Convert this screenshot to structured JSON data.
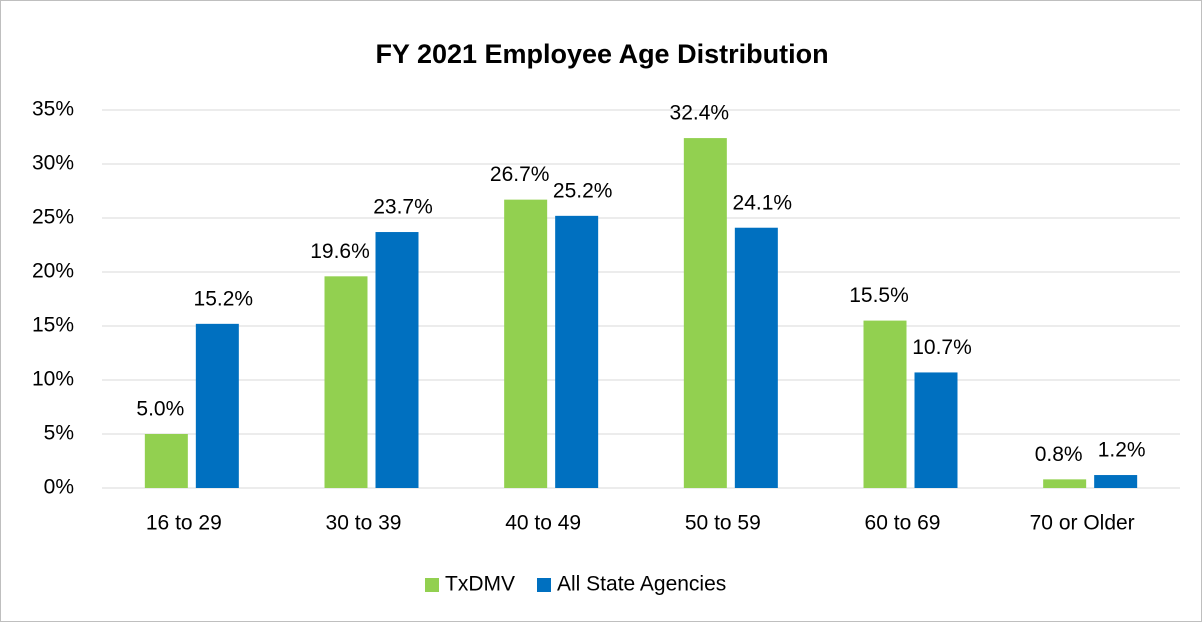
{
  "chart_data": {
    "type": "bar",
    "title": "FY 2021 Employee Age Distribution",
    "categories": [
      "16 to 29",
      "30 to 39",
      "40 to 49",
      "50 to 59",
      "60 to 69",
      "70 or Older"
    ],
    "series": [
      {
        "name": "TxDMV",
        "color": "#92d050",
        "values": [
          5.0,
          19.6,
          26.7,
          32.4,
          15.5,
          0.8
        ],
        "value_labels": [
          "5.0%",
          "19.6%",
          "26.7%",
          "32.4%",
          "15.5%",
          "0.8%"
        ]
      },
      {
        "name": "All State Agencies",
        "color": "#0070c0",
        "values": [
          15.2,
          23.7,
          25.2,
          24.1,
          10.7,
          1.2
        ],
        "value_labels": [
          "15.2%",
          "23.7%",
          "25.2%",
          "24.1%",
          "10.7%",
          "1.2%"
        ]
      }
    ],
    "ylim": [
      0,
      35
    ],
    "yticks": [
      {
        "value": 0,
        "label": "0%"
      },
      {
        "value": 5,
        "label": "5%"
      },
      {
        "value": 10,
        "label": "10%"
      },
      {
        "value": 15,
        "label": "15%"
      },
      {
        "value": 20,
        "label": "20%"
      },
      {
        "value": 25,
        "label": "25%"
      },
      {
        "value": 30,
        "label": "30%"
      },
      {
        "value": 35,
        "label": "35%"
      }
    ],
    "grid": true,
    "legend": "bottom"
  }
}
